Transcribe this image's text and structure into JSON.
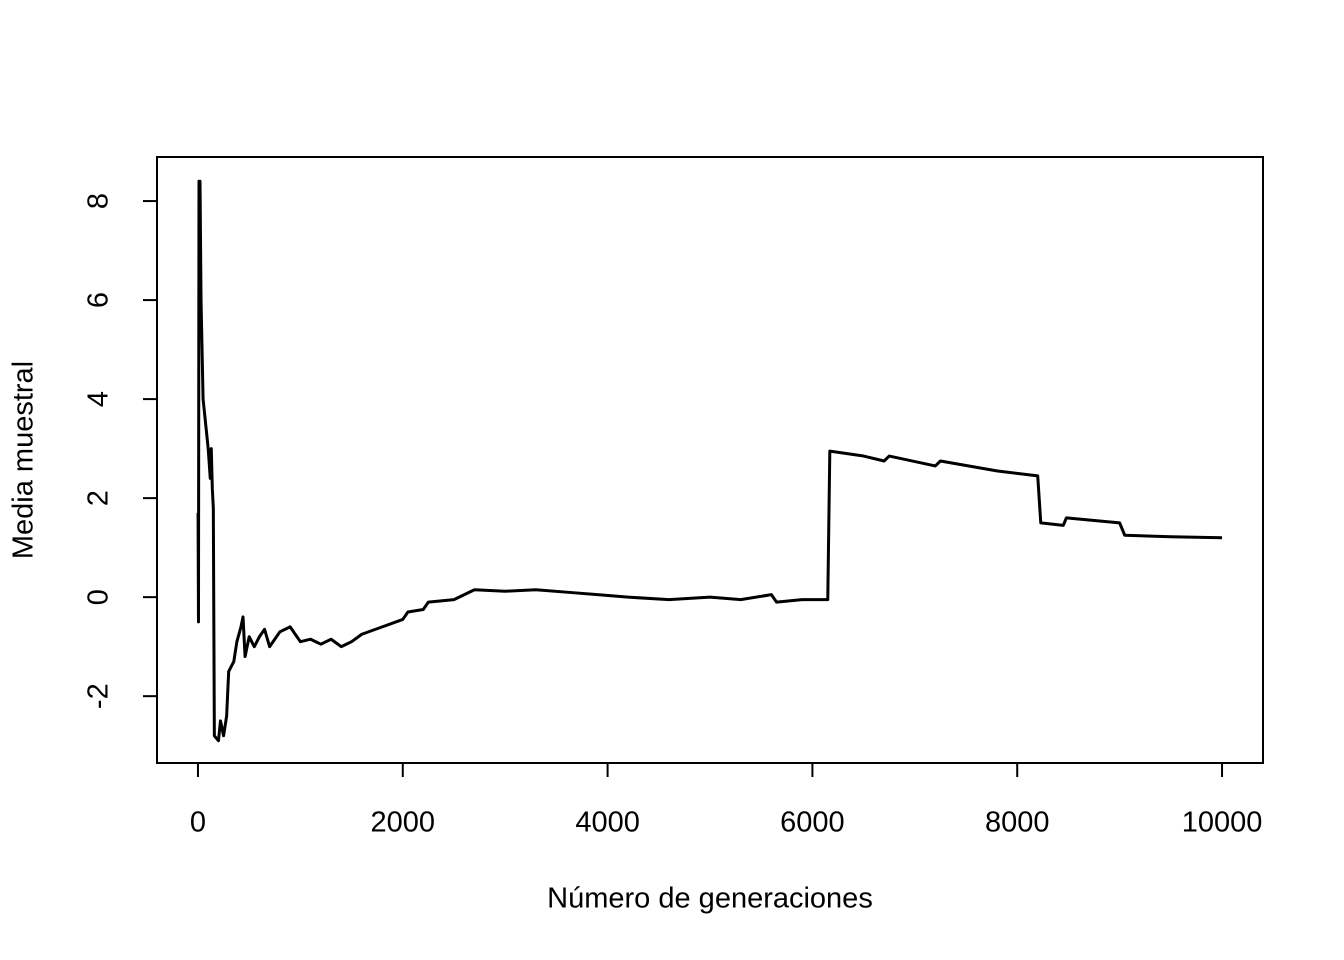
{
  "chart_data": {
    "type": "line",
    "x_label": "Número de generaciones",
    "y_label": "Media muestral",
    "x": [
      1,
      5,
      10,
      20,
      30,
      50,
      80,
      100,
      120,
      130,
      140,
      150,
      160,
      200,
      220,
      250,
      280,
      300,
      350,
      380,
      420,
      440,
      460,
      500,
      550,
      600,
      650,
      700,
      800,
      900,
      1000,
      1100,
      1200,
      1300,
      1400,
      1500,
      1600,
      1800,
      2000,
      2050,
      2200,
      2250,
      2500,
      2700,
      3000,
      3300,
      3600,
      3900,
      4200,
      4600,
      5000,
      5300,
      5600,
      5650,
      5900,
      6150,
      6170,
      6500,
      6700,
      6750,
      7200,
      7250,
      7800,
      8200,
      8230,
      8450,
      8480,
      9000,
      9050,
      9500,
      10000
    ],
    "series": [
      {
        "color": "#000000",
        "values": [
          1.7,
          -0.5,
          8.4,
          8.4,
          6,
          4,
          3.4,
          3,
          2.4,
          3,
          2.2,
          1.8,
          -2.8,
          -2.9,
          -2.5,
          -2.8,
          -2.4,
          -1.5,
          -1.3,
          -0.9,
          -0.6,
          -0.4,
          -1.2,
          -0.8,
          -1.0,
          -0.8,
          -0.65,
          -1.0,
          -0.7,
          -0.6,
          -0.9,
          -0.85,
          -0.95,
          -0.85,
          -1.0,
          -0.9,
          -0.75,
          -0.6,
          -0.45,
          -0.3,
          -0.25,
          -0.1,
          -0.05,
          0.15,
          0.12,
          0.15,
          0.1,
          0.05,
          0.0,
          -0.05,
          0.0,
          -0.05,
          0.05,
          -0.1,
          -0.05,
          -0.05,
          2.95,
          2.85,
          2.75,
          2.85,
          2.65,
          2.75,
          2.55,
          2.45,
          1.5,
          1.45,
          1.6,
          1.5,
          1.25,
          1.22,
          1.2
        ]
      }
    ],
    "xlim": [
      -400,
      10400
    ],
    "ylim": [
      -3.35,
      8.89
    ],
    "xticks": [
      0,
      2000,
      4000,
      6000,
      8000,
      10000
    ],
    "yticks": [
      -2,
      0,
      2,
      4,
      6,
      8
    ]
  }
}
